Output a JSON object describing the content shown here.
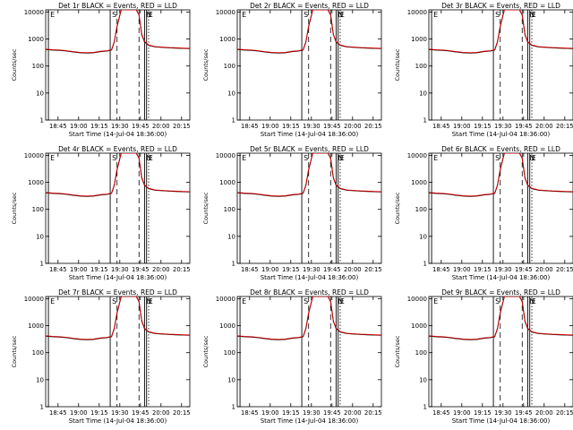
{
  "figure": {
    "panels": [
      {
        "title": "Det 1r BLACK = Events, RED = LLD"
      },
      {
        "title": "Det 2r BLACK = Events, RED = LLD"
      },
      {
        "title": "Det 3r BLACK = Events, RED = LLD"
      },
      {
        "title": "Det 4r BLACK = Events, RED = LLD"
      },
      {
        "title": "Det 5r BLACK = Events, RED = LLD"
      },
      {
        "title": "Det 6r BLACK = Events, RED = LLD"
      },
      {
        "title": "Det 7r BLACK = Events, RED = LLD"
      },
      {
        "title": "Det 8r BLACK = Events, RED = LLD"
      },
      {
        "title": "Det 9r BLACK = Events, RED = LLD"
      }
    ],
    "xlabel": "Start Time (14-Jul-04 18:36:00)",
    "ylabel": "Counts/sec",
    "xticks": [
      "18:45",
      "19:00",
      "19:15",
      "19:30",
      "19:45",
      "20:00",
      "20:15"
    ],
    "yticks": [
      "1",
      "10",
      "100",
      "1000",
      "10000"
    ],
    "marker_letters": [
      "E",
      "S",
      "N",
      "E"
    ],
    "series_colors": {
      "events": "#000000",
      "lld": "#cc0000"
    }
  },
  "chart_data": {
    "type": "line",
    "count": 9,
    "x_unit": "minutes after 18:36:00",
    "x_range": [
      0,
      105
    ],
    "xtick_values": [
      9,
      24,
      39,
      54,
      69,
      84,
      99
    ],
    "y_scale": "log",
    "ylim": [
      1,
      12000
    ],
    "series": [
      {
        "name": "Events",
        "color": "#000000"
      },
      {
        "name": "LLD",
        "color": "#cc0000"
      }
    ],
    "x": [
      0,
      5,
      10,
      15,
      20,
      25,
      30,
      35,
      40,
      45,
      48,
      50,
      52,
      55,
      58,
      60,
      63,
      66,
      68,
      70,
      72,
      75,
      80,
      85,
      90,
      95,
      100,
      105
    ],
    "lld_values": [
      420,
      400,
      390,
      370,
      340,
      320,
      310,
      320,
      350,
      370,
      400,
      800,
      3000,
      12000,
      12000,
      12000,
      12000,
      12000,
      8000,
      1500,
      800,
      600,
      520,
      500,
      480,
      470,
      460,
      450
    ],
    "events_values": [
      410,
      390,
      380,
      360,
      330,
      310,
      300,
      310,
      340,
      360,
      390,
      780,
      2900,
      12000,
      12000,
      12000,
      12000,
      12000,
      7800,
      1450,
      780,
      580,
      510,
      490,
      470,
      460,
      450,
      440
    ],
    "vertical_markers": [
      {
        "label": "E",
        "x": 2,
        "style": "solid"
      },
      {
        "label": "S",
        "x": 47,
        "style": "solid"
      },
      {
        "label": "N",
        "x": 72,
        "style": "solid"
      },
      {
        "label": "E",
        "x": 73.5,
        "style": "solid"
      }
    ],
    "dashed_markers": [
      52,
      68
    ],
    "dotted_markers": [
      75
    ],
    "grid": false,
    "legend": "none"
  }
}
